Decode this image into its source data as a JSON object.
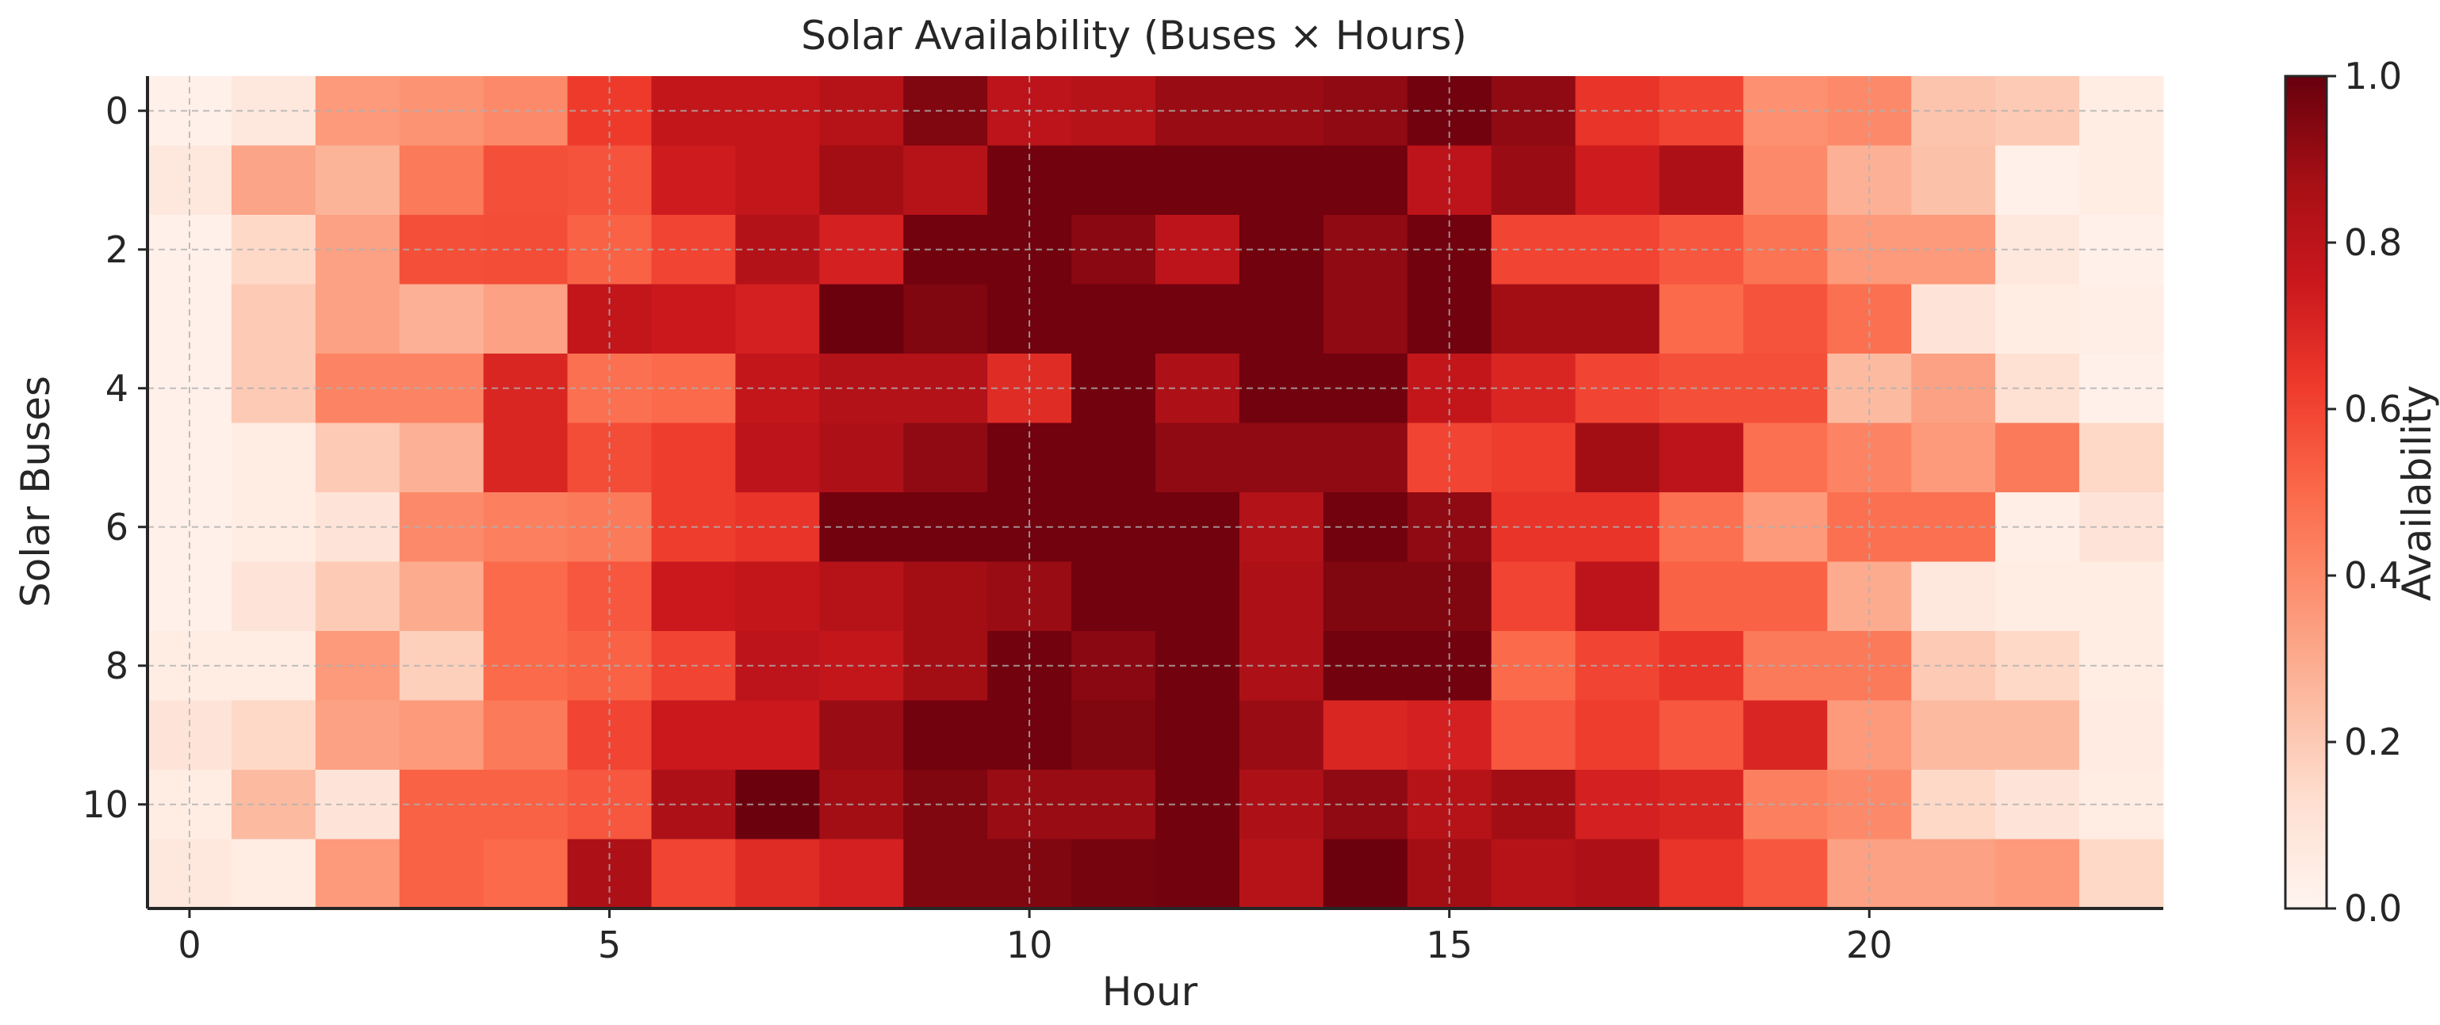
{
  "chart_data": {
    "type": "heatmap",
    "title": "Solar Availability (Buses × Hours)",
    "xlabel": "Hour",
    "ylabel": "Solar Buses",
    "x_ticks": [
      0,
      5,
      10,
      15,
      20
    ],
    "y_ticks": [
      0,
      2,
      4,
      6,
      8,
      10
    ],
    "xlim": [
      -0.5,
      23.5
    ],
    "ylim": [
      11.5,
      -0.5
    ],
    "grid": true,
    "colormap": "Reds",
    "colorbar": {
      "label": "Availability",
      "ticks": [
        0.0,
        0.2,
        0.4,
        0.6,
        0.8,
        1.0
      ],
      "range": [
        0.0,
        1.0
      ]
    },
    "rows": [
      0,
      1,
      2,
      3,
      4,
      5,
      6,
      7,
      8,
      9,
      10,
      11
    ],
    "columns": [
      0,
      1,
      2,
      3,
      4,
      5,
      6,
      7,
      8,
      9,
      10,
      11,
      12,
      13,
      14,
      15,
      16,
      17,
      18,
      19,
      20,
      21,
      22,
      23
    ],
    "values": [
      [
        0.03,
        0.08,
        0.35,
        0.37,
        0.4,
        0.63,
        0.78,
        0.78,
        0.82,
        0.95,
        0.8,
        0.82,
        0.9,
        0.9,
        0.92,
        0.98,
        0.92,
        0.65,
        0.6,
        0.38,
        0.4,
        0.22,
        0.2,
        0.05
      ],
      [
        0.08,
        0.32,
        0.27,
        0.45,
        0.57,
        0.56,
        0.74,
        0.78,
        0.88,
        0.82,
        0.98,
        0.98,
        0.98,
        0.98,
        0.98,
        0.8,
        0.9,
        0.74,
        0.85,
        0.4,
        0.28,
        0.23,
        0.03,
        0.05
      ],
      [
        0.03,
        0.15,
        0.33,
        0.57,
        0.58,
        0.52,
        0.6,
        0.83,
        0.72,
        0.98,
        0.98,
        0.93,
        0.8,
        0.98,
        0.92,
        0.98,
        0.6,
        0.6,
        0.55,
        0.47,
        0.35,
        0.35,
        0.08,
        0.03
      ],
      [
        0.03,
        0.2,
        0.33,
        0.28,
        0.33,
        0.78,
        0.75,
        0.72,
        0.99,
        0.95,
        0.98,
        0.98,
        0.98,
        0.98,
        0.92,
        0.98,
        0.88,
        0.88,
        0.5,
        0.56,
        0.48,
        0.1,
        0.05,
        0.04
      ],
      [
        0.03,
        0.2,
        0.42,
        0.42,
        0.7,
        0.48,
        0.5,
        0.78,
        0.83,
        0.83,
        0.68,
        0.98,
        0.85,
        0.98,
        0.98,
        0.78,
        0.7,
        0.6,
        0.57,
        0.57,
        0.25,
        0.33,
        0.12,
        0.03
      ],
      [
        0.03,
        0.05,
        0.2,
        0.28,
        0.7,
        0.58,
        0.62,
        0.8,
        0.85,
        0.92,
        0.98,
        0.98,
        0.92,
        0.92,
        0.92,
        0.6,
        0.62,
        0.88,
        0.8,
        0.48,
        0.42,
        0.35,
        0.45,
        0.15
      ],
      [
        0.03,
        0.05,
        0.1,
        0.4,
        0.43,
        0.45,
        0.62,
        0.65,
        0.98,
        0.98,
        0.98,
        0.98,
        0.98,
        0.83,
        0.98,
        0.92,
        0.65,
        0.65,
        0.48,
        0.35,
        0.48,
        0.48,
        0.04,
        0.1
      ],
      [
        0.03,
        0.1,
        0.2,
        0.3,
        0.5,
        0.55,
        0.75,
        0.78,
        0.82,
        0.88,
        0.9,
        0.98,
        0.98,
        0.85,
        0.95,
        0.95,
        0.6,
        0.8,
        0.52,
        0.52,
        0.3,
        0.08,
        0.05,
        0.05
      ],
      [
        0.05,
        0.05,
        0.35,
        0.18,
        0.5,
        0.52,
        0.6,
        0.8,
        0.78,
        0.88,
        0.98,
        0.93,
        0.98,
        0.85,
        0.98,
        0.98,
        0.5,
        0.6,
        0.65,
        0.45,
        0.45,
        0.2,
        0.15,
        0.05
      ],
      [
        0.1,
        0.15,
        0.33,
        0.35,
        0.45,
        0.6,
        0.75,
        0.75,
        0.9,
        0.98,
        0.98,
        0.95,
        0.98,
        0.9,
        0.7,
        0.72,
        0.55,
        0.62,
        0.55,
        0.7,
        0.35,
        0.25,
        0.25,
        0.06
      ],
      [
        0.05,
        0.25,
        0.1,
        0.52,
        0.52,
        0.55,
        0.85,
        0.99,
        0.88,
        0.95,
        0.9,
        0.9,
        0.98,
        0.85,
        0.92,
        0.82,
        0.88,
        0.72,
        0.7,
        0.43,
        0.4,
        0.15,
        0.1,
        0.05
      ],
      [
        0.08,
        0.05,
        0.35,
        0.52,
        0.5,
        0.85,
        0.6,
        0.68,
        0.72,
        0.95,
        0.95,
        0.97,
        0.98,
        0.82,
        0.99,
        0.88,
        0.82,
        0.85,
        0.65,
        0.55,
        0.33,
        0.33,
        0.35,
        0.15
      ]
    ]
  }
}
